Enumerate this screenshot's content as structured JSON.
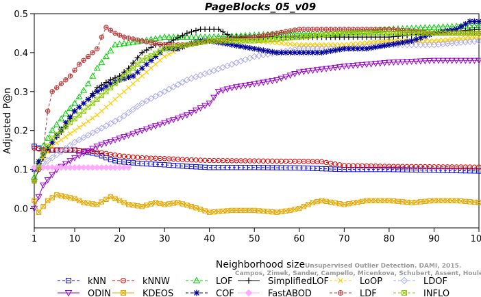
{
  "chart_data": {
    "type": "line",
    "title": "PageBlocks_05_v09",
    "xlabel": "Neighborhood size",
    "ylabel": "Adjusted P@n",
    "xlim": [
      1,
      100
    ],
    "ylim": [
      -0.05,
      0.5
    ],
    "xticks": [
      1,
      10,
      20,
      30,
      40,
      50,
      60,
      70,
      80,
      90,
      100
    ],
    "yticks": [
      0.0,
      0.1,
      0.2,
      0.3,
      0.4,
      0.5
    ],
    "ytick_labels": [
      "0.0",
      "0.1",
      "0.2",
      "0.3",
      "0.4",
      "0.5"
    ],
    "grid": false,
    "legend_position": "bottom",
    "watermark": [
      "Unsupervised Outlier Detection. DAMI, 2015.",
      "Campos, Zimek, Sander, Campello, Micenkova, Schubert, Assent, Houle"
    ],
    "series": [
      {
        "name": "kNN",
        "color": "#0000dd",
        "marker": "square",
        "dash": "4,3",
        "points": [
          [
            1,
            0.16
          ],
          [
            3,
            0.15
          ],
          [
            5,
            0.15
          ],
          [
            10,
            0.15
          ],
          [
            15,
            0.14
          ],
          [
            18,
            0.125
          ],
          [
            20,
            0.12
          ],
          [
            25,
            0.115
          ],
          [
            30,
            0.112
          ],
          [
            35,
            0.108
          ],
          [
            40,
            0.105
          ],
          [
            50,
            0.105
          ],
          [
            60,
            0.104
          ],
          [
            70,
            0.1
          ],
          [
            80,
            0.1
          ],
          [
            90,
            0.098
          ],
          [
            100,
            0.096
          ]
        ]
      },
      {
        "name": "kNNW",
        "color": "#dd0000",
        "marker": "circle",
        "dash": "4,3",
        "points": [
          [
            1,
            0.155
          ],
          [
            3,
            0.15
          ],
          [
            5,
            0.15
          ],
          [
            10,
            0.15
          ],
          [
            15,
            0.145
          ],
          [
            20,
            0.135
          ],
          [
            25,
            0.13
          ],
          [
            30,
            0.128
          ],
          [
            35,
            0.125
          ],
          [
            40,
            0.123
          ],
          [
            50,
            0.122
          ],
          [
            60,
            0.121
          ],
          [
            65,
            0.12
          ],
          [
            70,
            0.11
          ],
          [
            80,
            0.108
          ],
          [
            90,
            0.107
          ],
          [
            100,
            0.106
          ]
        ]
      },
      {
        "name": "LOF",
        "color": "#00cc00",
        "marker": "triangle-up",
        "dash": "4,3",
        "points": [
          [
            1,
            0.08
          ],
          [
            3,
            0.16
          ],
          [
            5,
            0.2
          ],
          [
            7,
            0.23
          ],
          [
            10,
            0.27
          ],
          [
            13,
            0.32
          ],
          [
            15,
            0.36
          ],
          [
            17,
            0.39
          ],
          [
            19,
            0.42
          ],
          [
            22,
            0.425
          ],
          [
            25,
            0.43
          ],
          [
            30,
            0.44
          ],
          [
            40,
            0.44
          ],
          [
            50,
            0.445
          ],
          [
            60,
            0.45
          ],
          [
            70,
            0.45
          ],
          [
            80,
            0.46
          ],
          [
            90,
            0.465
          ],
          [
            100,
            0.47
          ]
        ]
      },
      {
        "name": "SimplifiedLOF",
        "color": "#000000",
        "marker": "plus",
        "dash": "none",
        "points": [
          [
            1,
            0.07
          ],
          [
            3,
            0.13
          ],
          [
            5,
            0.17
          ],
          [
            8,
            0.21
          ],
          [
            10,
            0.25
          ],
          [
            13,
            0.28
          ],
          [
            15,
            0.31
          ],
          [
            18,
            0.33
          ],
          [
            20,
            0.34
          ],
          [
            22,
            0.36
          ],
          [
            25,
            0.4
          ],
          [
            28,
            0.42
          ],
          [
            30,
            0.42
          ],
          [
            35,
            0.45
          ],
          [
            38,
            0.46
          ],
          [
            42,
            0.46
          ],
          [
            45,
            0.44
          ],
          [
            50,
            0.44
          ],
          [
            60,
            0.44
          ],
          [
            70,
            0.44
          ],
          [
            80,
            0.44
          ],
          [
            90,
            0.45
          ],
          [
            100,
            0.46
          ]
        ]
      },
      {
        "name": "LoOP",
        "color": "#ffcc00",
        "marker": "x",
        "dash": "4,3",
        "points": [
          [
            1,
            0.1
          ],
          [
            5,
            0.16
          ],
          [
            10,
            0.2
          ],
          [
            15,
            0.24
          ],
          [
            20,
            0.29
          ],
          [
            25,
            0.34
          ],
          [
            30,
            0.39
          ],
          [
            35,
            0.42
          ],
          [
            40,
            0.43
          ],
          [
            50,
            0.43
          ],
          [
            60,
            0.42
          ],
          [
            70,
            0.42
          ],
          [
            80,
            0.43
          ],
          [
            90,
            0.43
          ],
          [
            100,
            0.44
          ]
        ]
      },
      {
        "name": "LDOF",
        "color": "#aaaaee",
        "marker": "diamond",
        "dash": "4,3",
        "points": [
          [
            1,
            0.1
          ],
          [
            5,
            0.13
          ],
          [
            10,
            0.17
          ],
          [
            15,
            0.2
          ],
          [
            20,
            0.23
          ],
          [
            25,
            0.27
          ],
          [
            30,
            0.3
          ],
          [
            35,
            0.33
          ],
          [
            40,
            0.35
          ],
          [
            45,
            0.37
          ],
          [
            50,
            0.39
          ],
          [
            55,
            0.4
          ],
          [
            60,
            0.41
          ],
          [
            70,
            0.41
          ],
          [
            80,
            0.42
          ],
          [
            90,
            0.42
          ],
          [
            100,
            0.43
          ]
        ]
      },
      {
        "name": "ODIN",
        "color": "#9900cc",
        "marker": "triangle-down",
        "dash": "none",
        "points": [
          [
            1,
            0.0
          ],
          [
            3,
            0.06
          ],
          [
            6,
            0.1
          ],
          [
            10,
            0.13
          ],
          [
            15,
            0.16
          ],
          [
            20,
            0.18
          ],
          [
            25,
            0.2
          ],
          [
            30,
            0.22
          ],
          [
            35,
            0.24
          ],
          [
            40,
            0.27
          ],
          [
            42,
            0.3
          ],
          [
            45,
            0.31
          ],
          [
            50,
            0.32
          ],
          [
            55,
            0.33
          ],
          [
            60,
            0.35
          ],
          [
            70,
            0.365
          ],
          [
            80,
            0.375
          ],
          [
            90,
            0.38
          ],
          [
            100,
            0.38
          ]
        ]
      },
      {
        "name": "KDEOS",
        "color": "#e6a800",
        "marker": "square-x",
        "dash": "none",
        "points": [
          [
            1,
            0.02
          ],
          [
            2,
            -0.01
          ],
          [
            4,
            0.02
          ],
          [
            6,
            0.035
          ],
          [
            8,
            0.03
          ],
          [
            10,
            0.025
          ],
          [
            12,
            0.015
          ],
          [
            15,
            0.01
          ],
          [
            18,
            0.03
          ],
          [
            20,
            0.02
          ],
          [
            22,
            0.01
          ],
          [
            25,
            0.005
          ],
          [
            28,
            0.015
          ],
          [
            30,
            0.01
          ],
          [
            33,
            0.015
          ],
          [
            36,
            0.005
          ],
          [
            40,
            -0.01
          ],
          [
            45,
            -0.005
          ],
          [
            50,
            -0.005
          ],
          [
            55,
            -0.01
          ],
          [
            58,
            -0.005
          ],
          [
            60,
            0.0
          ],
          [
            63,
            0.015
          ],
          [
            65,
            0.02
          ],
          [
            70,
            0.01
          ],
          [
            75,
            0.02
          ],
          [
            80,
            0.02
          ],
          [
            85,
            0.015
          ],
          [
            90,
            0.02
          ],
          [
            95,
            0.02
          ],
          [
            100,
            0.015
          ]
        ]
      },
      {
        "name": "COF",
        "color": "#000099",
        "marker": "asterisk",
        "dash": "4,3",
        "points": [
          [
            1,
            0.1
          ],
          [
            3,
            0.14
          ],
          [
            5,
            0.17
          ],
          [
            8,
            0.22
          ],
          [
            10,
            0.25
          ],
          [
            13,
            0.28
          ],
          [
            15,
            0.3
          ],
          [
            18,
            0.32
          ],
          [
            20,
            0.33
          ],
          [
            23,
            0.34
          ],
          [
            25,
            0.36
          ],
          [
            28,
            0.39
          ],
          [
            30,
            0.41
          ],
          [
            33,
            0.41
          ],
          [
            35,
            0.42
          ],
          [
            38,
            0.43
          ],
          [
            40,
            0.43
          ],
          [
            45,
            0.42
          ],
          [
            50,
            0.41
          ],
          [
            55,
            0.4
          ],
          [
            60,
            0.4
          ],
          [
            65,
            0.4
          ],
          [
            70,
            0.41
          ],
          [
            75,
            0.41
          ],
          [
            80,
            0.42
          ],
          [
            85,
            0.43
          ],
          [
            90,
            0.45
          ],
          [
            95,
            0.46
          ],
          [
            98,
            0.48
          ],
          [
            100,
            0.48
          ]
        ]
      },
      {
        "name": "FastABOD",
        "color": "#ffaaff",
        "marker": "diamond-filled",
        "dash": "none",
        "points": [
          [
            1,
            0.105
          ],
          [
            5,
            0.105
          ],
          [
            10,
            0.105
          ],
          [
            15,
            0.105
          ],
          [
            20,
            0.105
          ],
          [
            22,
            0.105
          ]
        ]
      },
      {
        "name": "LDF",
        "color": "#bb3333",
        "marker": "circle-plus",
        "dash": "4,3",
        "points": [
          [
            1,
            0.07
          ],
          [
            2,
            0.1
          ],
          [
            3,
            0.15
          ],
          [
            4,
            0.25
          ],
          [
            5,
            0.3
          ],
          [
            7,
            0.32
          ],
          [
            9,
            0.34
          ],
          [
            11,
            0.37
          ],
          [
            13,
            0.39
          ],
          [
            15,
            0.41
          ],
          [
            16,
            0.44
          ],
          [
            17,
            0.465
          ],
          [
            19,
            0.45
          ],
          [
            21,
            0.44
          ],
          [
            25,
            0.43
          ],
          [
            30,
            0.42
          ],
          [
            35,
            0.42
          ],
          [
            40,
            0.43
          ],
          [
            50,
            0.44
          ],
          [
            60,
            0.46
          ],
          [
            70,
            0.46
          ],
          [
            80,
            0.46
          ],
          [
            90,
            0.45
          ],
          [
            100,
            0.45
          ]
        ]
      },
      {
        "name": "INFLO",
        "color": "#88cc00",
        "marker": "square-x",
        "dash": "4,3",
        "points": [
          [
            1,
            0.07
          ],
          [
            3,
            0.14
          ],
          [
            5,
            0.18
          ],
          [
            8,
            0.21
          ],
          [
            10,
            0.23
          ],
          [
            15,
            0.28
          ],
          [
            20,
            0.33
          ],
          [
            25,
            0.38
          ],
          [
            30,
            0.41
          ],
          [
            35,
            0.42
          ],
          [
            40,
            0.43
          ],
          [
            50,
            0.43
          ],
          [
            60,
            0.44
          ],
          [
            70,
            0.45
          ],
          [
            80,
            0.45
          ],
          [
            90,
            0.45
          ],
          [
            100,
            0.45
          ]
        ]
      }
    ]
  }
}
